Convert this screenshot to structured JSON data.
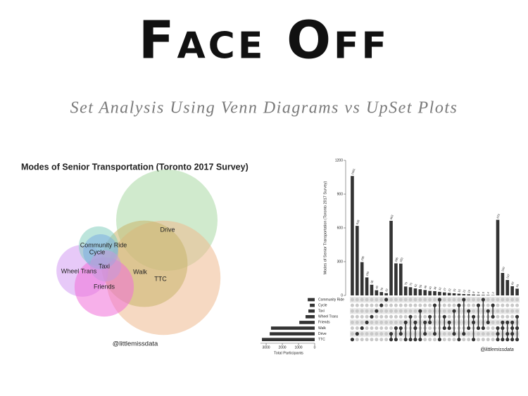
{
  "header": {
    "title": "Face Off",
    "subtitle": "Set Analysis Using Venn Diagrams vs UpSet Plots"
  },
  "chart_data": [
    {
      "type": "venn",
      "title": "Modes of Senior Transportation (Toronto 2017 Survey)",
      "sets": [
        "Drive",
        "TTC",
        "Walk",
        "Wheel Trans",
        "Friends",
        "Community Ride",
        "Cycle",
        "Taxi"
      ],
      "values": [
        2750,
        3500,
        2000,
        720,
        940,
        420,
        330,
        260
      ],
      "colors": [
        "#a9d8a4",
        "#eeb98f",
        "#c9b46c",
        "#d39cf3",
        "#f06fd8",
        "#86cfc0",
        "#7eaee2",
        "#c59bdd"
      ],
      "annotation": "@littlemissdata"
    },
    {
      "type": "upset",
      "ylabel": "Modes of Senior Transportation (Toronto 2017 Survey)",
      "sets": [
        "Community Ride",
        "Cycle",
        "Taxi",
        "Wheel Trans",
        "Friends",
        "Walk",
        "Drive",
        "TTC"
      ],
      "set_sizes": [
        430,
        300,
        390,
        565,
        950,
        2700,
        2780,
        3260
      ],
      "values": [
        1061,
        618,
        296,
        160,
        95,
        46,
        30,
        20,
        663,
        285,
        283,
        79,
        73,
        62,
        55,
        48,
        40,
        38,
        32,
        27,
        22,
        19,
        15,
        12,
        10,
        8,
        6,
        5,
        4,
        3,
        672,
        200,
        137,
        82,
        60
      ],
      "members": [
        [
          7
        ],
        [
          6
        ],
        [
          5
        ],
        [
          4
        ],
        [
          3
        ],
        [
          2
        ],
        [
          1
        ],
        [
          0
        ],
        [
          6,
          7
        ],
        [
          5,
          7
        ],
        [
          5,
          6
        ],
        [
          4,
          7
        ],
        [
          3,
          7
        ],
        [
          4,
          5,
          7
        ],
        [
          2,
          7
        ],
        [
          4,
          6
        ],
        [
          3,
          4
        ],
        [
          1,
          6
        ],
        [
          0,
          7
        ],
        [
          3,
          5
        ],
        [
          4,
          5
        ],
        [
          2,
          6
        ],
        [
          1,
          7
        ],
        [
          0,
          6
        ],
        [
          2,
          5
        ],
        [
          3,
          4,
          7
        ],
        [
          1,
          5
        ],
        [
          0,
          5
        ],
        [
          2,
          4
        ],
        [
          1,
          3
        ],
        [
          5,
          6,
          7
        ],
        [
          4,
          5,
          7
        ],
        [
          4,
          6,
          7
        ],
        [
          4,
          5,
          6,
          7
        ],
        [
          3,
          5,
          7
        ]
      ],
      "color": "#333333",
      "ylim": [
        0,
        1200
      ],
      "yticks": [
        0,
        300,
        600,
        900,
        1200
      ],
      "xlabel": "Total Participants",
      "xlim": [
        3350,
        0
      ],
      "xticks": [
        3000,
        2000,
        1000,
        0
      ],
      "annotation": "@littlemissdata"
    }
  ]
}
